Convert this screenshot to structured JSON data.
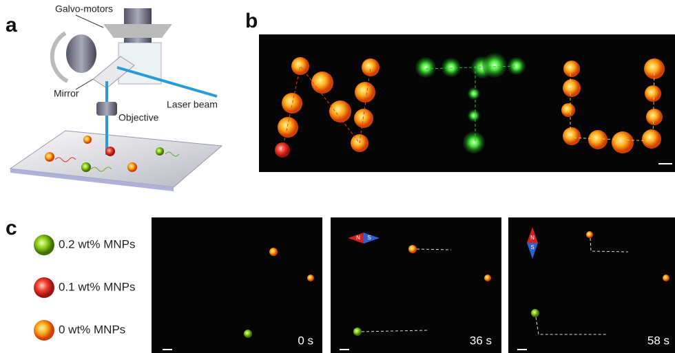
{
  "panels": {
    "a": {
      "label": "a",
      "galvo": "Galvo-motors",
      "mirror": "Mirror",
      "objective": "Objective",
      "laser": "Laser beam"
    },
    "b": {
      "label": "b"
    },
    "c": {
      "label": "c",
      "legend": [
        "0.2 wt% MNPs",
        "0.1 wt% MNPs",
        "0 wt% MNPs"
      ],
      "frames": [
        {
          "time": "0 s"
        },
        {
          "time": "36 s",
          "north": "N",
          "south": "S"
        },
        {
          "time": "58 s",
          "north": "N",
          "south": "S"
        }
      ]
    }
  }
}
